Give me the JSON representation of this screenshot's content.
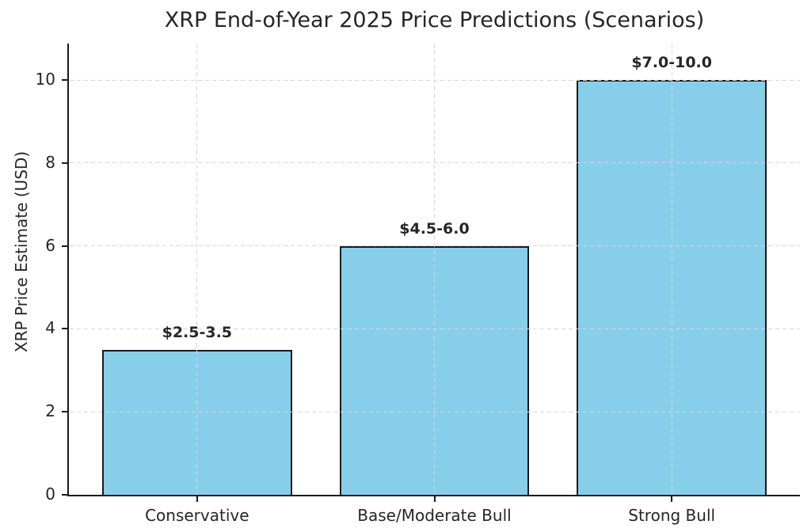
{
  "chart_data": {
    "type": "bar",
    "title": "XRP End-of-Year 2025 Price Predictions (Scenarios)",
    "xlabel": "",
    "ylabel": "XRP Price Estimate (USD)",
    "categories": [
      "Conservative",
      "Base/Moderate Bull",
      "Strong Bull"
    ],
    "values": [
      3.5,
      6.0,
      10.0
    ],
    "ranges_usd": [
      [
        2.5,
        3.5
      ],
      [
        4.5,
        6.0
      ],
      [
        7.0,
        10.0
      ]
    ],
    "bar_labels": [
      "$2.5-3.5",
      "$4.5-6.0",
      "$7.0-10.0"
    ],
    "yticks": [
      0,
      2,
      4,
      6,
      8,
      10
    ],
    "ylim": [
      0,
      10.88
    ],
    "grid": true,
    "grid_style": "dashed",
    "legend_position": "none",
    "colors": {
      "bar_fill": "#87CEEB",
      "bar_edge": "#1a1a1a",
      "grid": "#d6d6d6",
      "text": "#262626",
      "axis": "#1a1a1a",
      "background": "#ffffff"
    }
  }
}
